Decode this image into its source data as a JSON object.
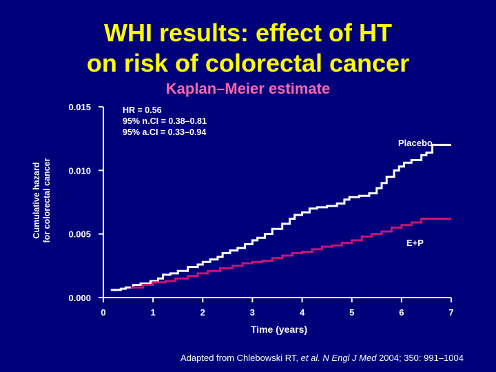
{
  "slide": {
    "title_line1": "WHI results: effect of HT",
    "title_line2": "on risk of colorectal cancer",
    "subtitle": "Kaplan–Meier estimate",
    "annotation": [
      "HR = 0.56",
      "95% n.CI = 0.38–0.81",
      "95% a.CI = 0.33–0.94"
    ],
    "source_prefix": "Adapted from Chlebowski RT, ",
    "source_etal": "et al.",
    "source_journal": " N Engl J Med",
    "source_suffix": " 2004; 350: 991–1004"
  },
  "colors": {
    "background": "#00007a",
    "title": "#ffff00",
    "subtitle": "#ff66aa",
    "placebo": "#ffffff",
    "ep": "#cc1177",
    "axis": "#ffffff"
  },
  "chart_data": {
    "type": "line",
    "title": "Kaplan–Meier estimate",
    "xlabel": "Time (years)",
    "ylabel_line1": "Cumulative hazard",
    "ylabel_line2": "for colorectal cancer",
    "xlim": [
      0,
      7
    ],
    "ylim": [
      0,
      0.015
    ],
    "x_ticks": [
      "0",
      "1",
      "2",
      "3",
      "4",
      "5",
      "6",
      "7"
    ],
    "y_ticks": [
      "0.000",
      "0.005",
      "0.010",
      "0.015"
    ],
    "grid": false,
    "series": [
      {
        "name": "Placebo",
        "x": [
          0.15,
          0.35,
          0.45,
          0.6,
          0.75,
          0.95,
          1.1,
          1.2,
          1.35,
          1.5,
          1.7,
          1.9,
          2.0,
          2.15,
          2.3,
          2.4,
          2.55,
          2.7,
          2.85,
          3.0,
          3.1,
          3.25,
          3.4,
          3.6,
          3.75,
          3.85,
          4.0,
          4.15,
          4.3,
          4.5,
          4.7,
          4.85,
          4.95,
          5.15,
          5.35,
          5.5,
          5.6,
          5.7,
          5.85,
          5.95,
          6.05,
          6.2,
          6.4,
          6.5,
          6.62,
          7.0
        ],
        "y": [
          0.0006,
          0.0007,
          0.0008,
          0.001,
          0.0011,
          0.0013,
          0.0015,
          0.0018,
          0.0019,
          0.0021,
          0.0024,
          0.0026,
          0.0028,
          0.003,
          0.0032,
          0.0035,
          0.0037,
          0.0039,
          0.0042,
          0.0045,
          0.0047,
          0.005,
          0.0054,
          0.0058,
          0.0062,
          0.0065,
          0.0067,
          0.007,
          0.0071,
          0.0072,
          0.0074,
          0.0077,
          0.0079,
          0.008,
          0.0082,
          0.0086,
          0.009,
          0.0095,
          0.01,
          0.0103,
          0.0106,
          0.0108,
          0.0112,
          0.0114,
          0.012,
          0.012
        ]
      },
      {
        "name": "E+P",
        "x": [
          0.55,
          0.8,
          1.0,
          1.25,
          1.45,
          1.7,
          1.9,
          2.1,
          2.35,
          2.6,
          2.8,
          3.0,
          3.2,
          3.4,
          3.6,
          3.8,
          4.0,
          4.2,
          4.4,
          4.6,
          4.8,
          5.0,
          5.2,
          5.4,
          5.6,
          5.8,
          6.0,
          6.2,
          6.4,
          7.0
        ],
        "y": [
          0.0008,
          0.001,
          0.0012,
          0.0013,
          0.0015,
          0.0017,
          0.0019,
          0.0021,
          0.0023,
          0.0025,
          0.0027,
          0.0028,
          0.0029,
          0.0031,
          0.0033,
          0.0035,
          0.0036,
          0.0038,
          0.004,
          0.0041,
          0.0043,
          0.0045,
          0.0048,
          0.005,
          0.0052,
          0.0055,
          0.0057,
          0.0059,
          0.0062,
          0.0062
        ]
      }
    ]
  }
}
